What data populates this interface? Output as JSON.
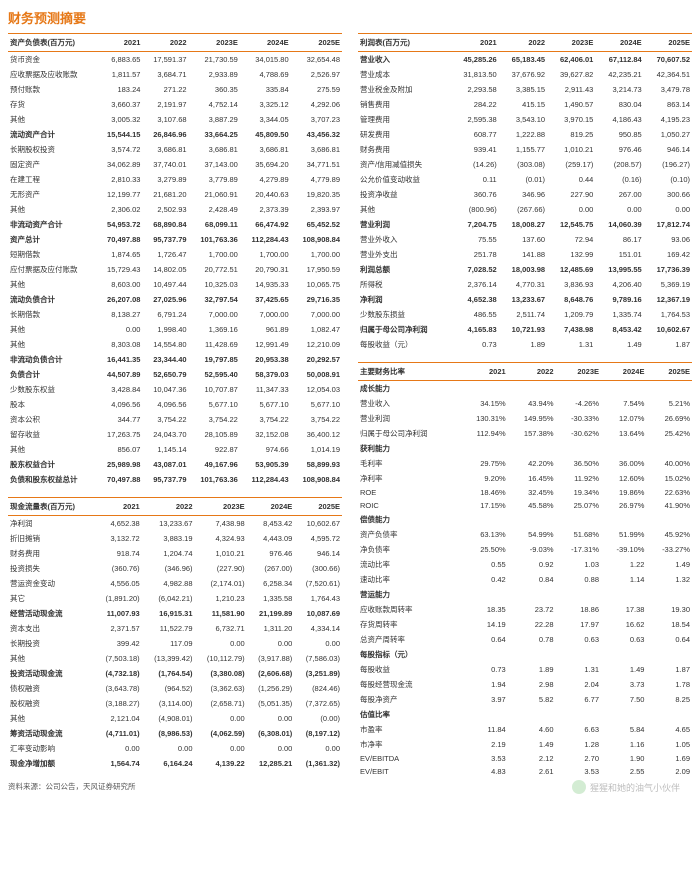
{
  "title": "财务预测摘要",
  "source": "资料来源：公司公告，天风证券研究所",
  "watermark": "猩猩和她的油气小伙伴",
  "cols": [
    "2021",
    "2022",
    "2023E",
    "2024E",
    "2025E"
  ],
  "balance": {
    "header": "资产负债表(百万元)",
    "rows": [
      [
        "货币资金",
        "6,883.65",
        "17,591.37",
        "21,730.59",
        "34,015.80",
        "32,654.48"
      ],
      [
        "应收票据及应收账款",
        "1,811.57",
        "3,684.71",
        "2,933.89",
        "4,788.69",
        "2,526.97"
      ],
      [
        "预付账款",
        "183.24",
        "271.22",
        "360.35",
        "335.84",
        "275.59"
      ],
      [
        "存货",
        "3,660.37",
        "2,191.97",
        "4,752.14",
        "3,325.12",
        "4,292.06"
      ],
      [
        "其他",
        "3,005.32",
        "3,107.68",
        "3,887.29",
        "3,344.05",
        "3,707.23"
      ],
      [
        "!流动资产合计",
        "15,544.15",
        "26,846.96",
        "33,664.25",
        "45,809.50",
        "43,456.32"
      ],
      [
        "长期股权投资",
        "3,574.72",
        "3,686.81",
        "3,686.81",
        "3,686.81",
        "3,686.81"
      ],
      [
        "固定资产",
        "34,062.89",
        "37,740.01",
        "37,143.00",
        "35,694.20",
        "34,771.51"
      ],
      [
        "在建工程",
        "2,810.33",
        "3,279.89",
        "3,779.89",
        "4,279.89",
        "4,779.89"
      ],
      [
        "无形资产",
        "12,199.77",
        "21,681.20",
        "21,060.91",
        "20,440.63",
        "19,820.35"
      ],
      [
        "其他",
        "2,306.02",
        "2,502.93",
        "2,428.49",
        "2,373.39",
        "2,393.97"
      ],
      [
        "!非流动资产合计",
        "54,953.72",
        "68,890.84",
        "68,099.11",
        "66,474.92",
        "65,452.52"
      ],
      [
        "!资产总计",
        "70,497.88",
        "95,737.79",
        "101,763.36",
        "112,284.43",
        "108,908.84"
      ],
      [
        "短期借款",
        "1,874.65",
        "1,726.47",
        "1,700.00",
        "1,700.00",
        "1,700.00"
      ],
      [
        "应付票据及应付账款",
        "15,729.43",
        "14,802.05",
        "20,772.51",
        "20,790.31",
        "17,950.59"
      ],
      [
        "其他",
        "8,603.00",
        "10,497.44",
        "10,325.03",
        "14,935.33",
        "10,065.75"
      ],
      [
        "!流动负债合计",
        "26,207.08",
        "27,025.96",
        "32,797.54",
        "37,425.65",
        "29,716.35"
      ],
      [
        "长期借款",
        "8,138.27",
        "6,791.24",
        "7,000.00",
        "7,000.00",
        "7,000.00"
      ],
      [
        "其他",
        "0.00",
        "1,998.40",
        "1,369.16",
        "961.89",
        "1,082.47"
      ],
      [
        "其他",
        "8,303.08",
        "14,554.80",
        "11,428.69",
        "12,991.49",
        "12,210.09"
      ],
      [
        "!非流动负债合计",
        "16,441.35",
        "23,344.40",
        "19,797.85",
        "20,953.38",
        "20,292.57"
      ],
      [
        "!负债合计",
        "44,507.89",
        "52,650.79",
        "52,595.40",
        "58,379.03",
        "50,008.91"
      ],
      [
        "少数股东权益",
        "3,428.84",
        "10,047.36",
        "10,707.87",
        "11,347.33",
        "12,054.03"
      ],
      [
        "股本",
        "4,096.56",
        "4,096.56",
        "5,677.10",
        "5,677.10",
        "5,677.10"
      ],
      [
        "资本公积",
        "344.77",
        "3,754.22",
        "3,754.22",
        "3,754.22",
        "3,754.22"
      ],
      [
        "留存收益",
        "17,263.75",
        "24,043.70",
        "28,105.89",
        "32,152.08",
        "36,400.12"
      ],
      [
        "其他",
        "856.07",
        "1,145.14",
        "922.87",
        "974.66",
        "1,014.19"
      ],
      [
        "!股东权益合计",
        "25,989.98",
        "43,087.01",
        "49,167.96",
        "53,905.39",
        "58,899.93"
      ],
      [
        "!负债和股东权益总计",
        "70,497.88",
        "95,737.79",
        "101,763.36",
        "112,284.43",
        "108,908.84"
      ]
    ]
  },
  "cashflow": {
    "header": "现金流量表(百万元)",
    "rows": [
      [
        "净利润",
        "4,652.38",
        "13,233.67",
        "7,438.98",
        "8,453.42",
        "10,602.67"
      ],
      [
        "折旧摊销",
        "3,132.72",
        "3,883.19",
        "4,324.93",
        "4,443.09",
        "4,595.72"
      ],
      [
        "财务费用",
        "918.74",
        "1,204.74",
        "1,010.21",
        "976.46",
        "946.14"
      ],
      [
        "投资损失",
        "(360.76)",
        "(346.96)",
        "(227.90)",
        "(267.00)",
        "(300.66)"
      ],
      [
        "营运资金变动",
        "4,556.05",
        "4,982.88",
        "(2,174.01)",
        "6,258.34",
        "(7,520.61)"
      ],
      [
        "其它",
        "(1,891.20)",
        "(6,042.21)",
        "1,210.23",
        "1,335.58",
        "1,764.43"
      ],
      [
        "!经营活动现金流",
        "11,007.93",
        "16,915.31",
        "11,581.90",
        "21,199.89",
        "10,087.69"
      ],
      [
        "资本支出",
        "2,371.57",
        "11,522.79",
        "6,732.71",
        "1,311.20",
        "4,334.14"
      ],
      [
        "长期投资",
        "399.42",
        "117.09",
        "0.00",
        "0.00",
        "0.00"
      ],
      [
        "其他",
        "(7,503.18)",
        "(13,399.42)",
        "(10,112.79)",
        "(3,917.88)",
        "(7,586.03)"
      ],
      [
        "!投资活动现金流",
        "(4,732.18)",
        "(1,764.54)",
        "(3,380.08)",
        "(2,606.68)",
        "(3,251.89)"
      ],
      [
        "债权融资",
        "(3,643.78)",
        "(964.52)",
        "(3,362.63)",
        "(1,256.29)",
        "(824.46)"
      ],
      [
        "股权融资",
        "(3,188.27)",
        "(3,114.00)",
        "(2,658.71)",
        "(5,051.35)",
        "(7,372.65)"
      ],
      [
        "其他",
        "2,121.04",
        "(4,908.01)",
        "0.00",
        "0.00",
        "(0.00)"
      ],
      [
        "!筹资活动现金流",
        "(4,711.01)",
        "(8,986.53)",
        "(4,062.59)",
        "(6,308.01)",
        "(8,197.12)"
      ],
      [
        "汇率变动影响",
        "0.00",
        "0.00",
        "0.00",
        "0.00",
        "0.00"
      ],
      [
        "!现金净增加额",
        "1,564.74",
        "6,164.24",
        "4,139.22",
        "12,285.21",
        "(1,361.32)"
      ]
    ]
  },
  "income": {
    "header": "利润表(百万元)",
    "rows": [
      [
        "!营业收入",
        "45,285.26",
        "65,183.45",
        "62,406.01",
        "67,112.84",
        "70,607.52"
      ],
      [
        "营业成本",
        "31,813.50",
        "37,676.92",
        "39,627.82",
        "42,235.21",
        "42,364.51"
      ],
      [
        "营业税金及附加",
        "2,293.58",
        "3,385.15",
        "2,911.43",
        "3,214.73",
        "3,479.78"
      ],
      [
        "销售费用",
        "284.22",
        "415.15",
        "1,490.57",
        "830.04",
        "863.14"
      ],
      [
        "管理费用",
        "2,595.38",
        "3,543.10",
        "3,970.15",
        "4,186.43",
        "4,195.23"
      ],
      [
        "研发费用",
        "608.77",
        "1,222.88",
        "819.25",
        "950.85",
        "1,050.27"
      ],
      [
        "财务费用",
        "939.41",
        "1,155.77",
        "1,010.21",
        "976.46",
        "946.14"
      ],
      [
        "资产/信用减值损失",
        "(14.26)",
        "(303.08)",
        "(259.17)",
        "(208.57)",
        "(196.27)"
      ],
      [
        "公允价值变动收益",
        "0.11",
        "(0.01)",
        "0.44",
        "(0.16)",
        "(0.10)"
      ],
      [
        "投资净收益",
        "360.76",
        "346.96",
        "227.90",
        "267.00",
        "300.66"
      ],
      [
        "其他",
        "(800.96)",
        "(267.66)",
        "0.00",
        "0.00",
        "0.00"
      ],
      [
        "!营业利润",
        "7,204.75",
        "18,008.27",
        "12,545.75",
        "14,060.39",
        "17,812.74"
      ],
      [
        "营业外收入",
        "75.55",
        "137.60",
        "72.94",
        "86.17",
        "93.06"
      ],
      [
        "营业外支出",
        "251.78",
        "141.88",
        "132.99",
        "151.01",
        "169.42"
      ],
      [
        "!利润总额",
        "7,028.52",
        "18,003.98",
        "12,485.69",
        "13,995.55",
        "17,736.39"
      ],
      [
        "所得税",
        "2,376.14",
        "4,770.31",
        "3,836.93",
        "4,206.40",
        "5,369.19"
      ],
      [
        "!净利润",
        "4,652.38",
        "13,233.67",
        "8,648.76",
        "9,789.16",
        "12,367.19"
      ],
      [
        "少数股东损益",
        "486.55",
        "2,511.74",
        "1,209.79",
        "1,335.74",
        "1,764.53"
      ],
      [
        "!归属于母公司净利润",
        "4,165.83",
        "10,721.93",
        "7,438.98",
        "8,453.42",
        "10,602.67"
      ],
      [
        "每股收益（元）",
        "0.73",
        "1.89",
        "1.31",
        "1.49",
        "1.87"
      ]
    ]
  },
  "ratios": {
    "header": "主要财务比率",
    "rows": [
      [
        "*成长能力",
        "",
        "",
        "",
        "",
        ""
      ],
      [
        "营业收入",
        "34.15%",
        "43.94%",
        "-4.26%",
        "7.54%",
        "5.21%"
      ],
      [
        "营业利润",
        "130.31%",
        "149.95%",
        "-30.33%",
        "12.07%",
        "26.69%"
      ],
      [
        "归属于母公司净利润",
        "112.94%",
        "157.38%",
        "-30.62%",
        "13.64%",
        "25.42%"
      ],
      [
        "*获利能力",
        "",
        "",
        "",
        "",
        ""
      ],
      [
        "毛利率",
        "29.75%",
        "42.20%",
        "36.50%",
        "36.00%",
        "40.00%"
      ],
      [
        "净利率",
        "9.20%",
        "16.45%",
        "11.92%",
        "12.60%",
        "15.02%"
      ],
      [
        "ROE",
        "18.46%",
        "32.45%",
        "19.34%",
        "19.86%",
        "22.63%"
      ],
      [
        "ROIC",
        "17.15%",
        "45.58%",
        "25.07%",
        "26.97%",
        "41.90%"
      ],
      [
        "*偿债能力",
        "",
        "",
        "",
        "",
        ""
      ],
      [
        "资产负债率",
        "63.13%",
        "54.99%",
        "51.68%",
        "51.99%",
        "45.92%"
      ],
      [
        "净负债率",
        "25.50%",
        "-9.03%",
        "-17.31%",
        "-39.10%",
        "-33.27%"
      ],
      [
        "流动比率",
        "0.55",
        "0.92",
        "1.03",
        "1.22",
        "1.49"
      ],
      [
        "速动比率",
        "0.42",
        "0.84",
        "0.88",
        "1.14",
        "1.32"
      ],
      [
        "*营运能力",
        "",
        "",
        "",
        "",
        ""
      ],
      [
        "应收账款周转率",
        "18.35",
        "23.72",
        "18.86",
        "17.38",
        "19.30"
      ],
      [
        "存货周转率",
        "14.19",
        "22.28",
        "17.97",
        "16.62",
        "18.54"
      ],
      [
        "总资产周转率",
        "0.64",
        "0.78",
        "0.63",
        "0.63",
        "0.64"
      ],
      [
        "*每股指标（元）",
        "",
        "",
        "",
        "",
        ""
      ],
      [
        "每股收益",
        "0.73",
        "1.89",
        "1.31",
        "1.49",
        "1.87"
      ],
      [
        "每股经营现金流",
        "1.94",
        "2.98",
        "2.04",
        "3.73",
        "1.78"
      ],
      [
        "每股净资产",
        "3.97",
        "5.82",
        "6.77",
        "7.50",
        "8.25"
      ],
      [
        "*估值比率",
        "",
        "",
        "",
        "",
        ""
      ],
      [
        "市盈率",
        "11.84",
        "4.60",
        "6.63",
        "5.84",
        "4.65"
      ],
      [
        "市净率",
        "2.19",
        "1.49",
        "1.28",
        "1.16",
        "1.05"
      ],
      [
        "EV/EBITDA",
        "3.53",
        "2.12",
        "2.70",
        "1.90",
        "1.69"
      ],
      [
        "EV/EBIT",
        "4.83",
        "2.61",
        "3.53",
        "2.55",
        "2.09"
      ]
    ]
  }
}
